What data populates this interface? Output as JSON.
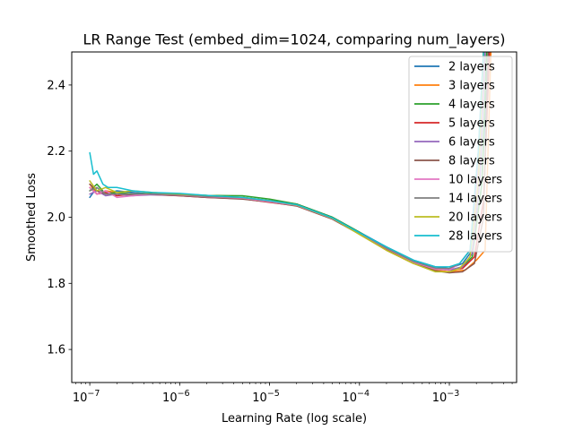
{
  "chart_data": {
    "type": "line",
    "title": "LR Range Test (embed_dim=1024, comparing num_layers)",
    "xlabel": "Learning Rate (log scale)",
    "ylabel": "Smoothed Loss",
    "xscale": "log",
    "xlim": [
      6.3e-08,
      0.0056
    ],
    "ylim": [
      1.5,
      2.5
    ],
    "xticks": [
      1e-07,
      1e-06,
      1e-05,
      0.0001,
      0.001
    ],
    "xtick_labels": [
      {
        "base": "10",
        "exp": "−7"
      },
      {
        "base": "10",
        "exp": "−6"
      },
      {
        "base": "10",
        "exp": "−5"
      },
      {
        "base": "10",
        "exp": "−4"
      },
      {
        "base": "10",
        "exp": "−3"
      }
    ],
    "yticks": [
      1.6,
      1.8,
      2.0,
      2.2,
      2.4
    ],
    "ytick_labels": [
      "1.6",
      "1.8",
      "2.0",
      "2.2",
      "2.4"
    ],
    "grid": false,
    "legend_position": "top-right",
    "series": [
      {
        "name": "2 layers",
        "color": "#1f77b4",
        "x": [
          1e-07,
          1.2e-07,
          1.5e-07,
          2e-07,
          3e-07,
          5e-07,
          1e-06,
          2e-06,
          5e-06,
          1e-05,
          2e-05,
          5e-05,
          0.0001,
          0.0002,
          0.0004,
          0.0007,
          0.001,
          0.0014,
          0.0018,
          0.0023,
          0.0027
        ],
        "y": [
          2.06,
          2.09,
          2.07,
          2.08,
          2.075,
          2.07,
          2.07,
          2.065,
          2.06,
          2.05,
          2.04,
          2.0,
          1.955,
          1.91,
          1.87,
          1.85,
          1.845,
          1.86,
          1.9,
          2.1,
          2.5
        ]
      },
      {
        "name": "3 layers",
        "color": "#ff7f0e",
        "x": [
          1e-07,
          1.2e-07,
          1.5e-07,
          2e-07,
          3e-07,
          5e-07,
          1e-06,
          2e-06,
          5e-06,
          1e-05,
          2e-05,
          5e-05,
          0.0001,
          0.0002,
          0.0004,
          0.0007,
          0.001,
          0.0015,
          0.002,
          0.0025,
          0.0029
        ],
        "y": [
          2.1,
          2.07,
          2.08,
          2.075,
          2.07,
          2.07,
          2.068,
          2.062,
          2.058,
          2.048,
          2.035,
          1.995,
          1.95,
          1.9,
          1.86,
          1.84,
          1.835,
          1.84,
          1.87,
          1.9,
          2.5
        ]
      },
      {
        "name": "4 layers",
        "color": "#2ca02c",
        "x": [
          1e-07,
          1.2e-07,
          1.5e-07,
          2e-07,
          3e-07,
          5e-07,
          1e-06,
          2e-06,
          5e-06,
          1e-05,
          2e-05,
          5e-05,
          0.0001,
          0.0002,
          0.0004,
          0.0007,
          0.001,
          0.0014,
          0.0018,
          0.0023,
          0.0026
        ],
        "y": [
          2.08,
          2.1,
          2.07,
          2.075,
          2.07,
          2.072,
          2.07,
          2.066,
          2.065,
          2.055,
          2.04,
          2.0,
          1.955,
          1.905,
          1.865,
          1.845,
          1.84,
          1.85,
          1.88,
          2.1,
          2.5
        ]
      },
      {
        "name": "5 layers",
        "color": "#d62728",
        "x": [
          1e-07,
          1.2e-07,
          1.5e-07,
          2e-07,
          3e-07,
          5e-07,
          1e-06,
          2e-06,
          5e-06,
          1e-05,
          2e-05,
          5e-05,
          0.0001,
          0.0002,
          0.0004,
          0.0007,
          0.001,
          0.0014,
          0.0019,
          0.0024,
          0.0028
        ],
        "y": [
          2.09,
          2.07,
          2.075,
          2.065,
          2.07,
          2.068,
          2.065,
          2.06,
          2.056,
          2.045,
          2.035,
          1.995,
          1.95,
          1.905,
          1.865,
          1.845,
          1.84,
          1.845,
          1.88,
          2.05,
          2.5
        ]
      },
      {
        "name": "6 layers",
        "color": "#9467bd",
        "x": [
          1e-07,
          1.2e-07,
          1.5e-07,
          2e-07,
          3e-07,
          5e-07,
          1e-06,
          2e-06,
          5e-06,
          1e-05,
          2e-05,
          5e-05,
          0.0001,
          0.0002,
          0.0004,
          0.0007,
          0.001,
          0.0014,
          0.0018,
          0.0022,
          0.0025
        ],
        "y": [
          2.07,
          2.08,
          2.065,
          2.07,
          2.065,
          2.068,
          2.066,
          2.062,
          2.057,
          2.047,
          2.036,
          1.996,
          1.952,
          1.907,
          1.866,
          1.846,
          1.84,
          1.85,
          1.89,
          2.12,
          2.5
        ]
      },
      {
        "name": "8 layers",
        "color": "#8c564b",
        "x": [
          1e-07,
          1.2e-07,
          1.5e-07,
          2e-07,
          3e-07,
          5e-07,
          1e-06,
          2e-06,
          5e-06,
          1e-05,
          2e-05,
          5e-05,
          0.0001,
          0.0002,
          0.0004,
          0.0007,
          0.001,
          0.0014,
          0.0019,
          0.0024,
          0.0027
        ],
        "y": [
          2.1,
          2.08,
          2.07,
          2.07,
          2.068,
          2.07,
          2.065,
          2.06,
          2.055,
          2.046,
          2.034,
          1.994,
          1.949,
          1.904,
          1.862,
          1.838,
          1.832,
          1.835,
          1.86,
          2.0,
          2.5
        ]
      },
      {
        "name": "10 layers",
        "color": "#e377c2",
        "x": [
          1e-07,
          1.2e-07,
          1.5e-07,
          2e-07,
          3e-07,
          5e-07,
          1e-06,
          2e-06,
          5e-06,
          1e-05,
          2e-05,
          5e-05,
          0.0001,
          0.0002,
          0.0004,
          0.0007,
          0.001,
          0.0013,
          0.0017,
          0.0021,
          0.0024
        ],
        "y": [
          2.09,
          2.07,
          2.08,
          2.06,
          2.065,
          2.07,
          2.067,
          2.062,
          2.058,
          2.047,
          2.036,
          1.996,
          1.951,
          1.906,
          1.864,
          1.843,
          1.84,
          1.86,
          1.9,
          2.15,
          2.5
        ]
      },
      {
        "name": "14 layers",
        "color": "#7f7f7f",
        "x": [
          1e-07,
          1.2e-07,
          1.5e-07,
          2e-07,
          3e-07,
          5e-07,
          1e-06,
          2e-06,
          5e-06,
          1e-05,
          2e-05,
          5e-05,
          0.0001,
          0.0002,
          0.0004,
          0.0007,
          0.001,
          0.0013,
          0.0017,
          0.0021,
          0.0024
        ],
        "y": [
          2.08,
          2.09,
          2.07,
          2.07,
          2.07,
          2.07,
          2.068,
          2.063,
          2.06,
          2.05,
          2.038,
          1.998,
          1.953,
          1.907,
          1.866,
          1.846,
          1.845,
          1.86,
          1.9,
          2.2,
          2.5
        ]
      },
      {
        "name": "20 layers",
        "color": "#bcbd22",
        "x": [
          1e-07,
          1.2e-07,
          1.5e-07,
          2e-07,
          3e-07,
          5e-07,
          1e-06,
          2e-06,
          5e-06,
          1e-05,
          2e-05,
          5e-05,
          0.0001,
          0.0002,
          0.0004,
          0.0007,
          0.001,
          0.0013,
          0.0017,
          0.0021,
          0.0024
        ],
        "y": [
          2.11,
          2.08,
          2.09,
          2.075,
          2.08,
          2.075,
          2.07,
          2.066,
          2.06,
          2.05,
          2.037,
          1.997,
          1.948,
          1.9,
          1.86,
          1.835,
          1.835,
          1.845,
          1.88,
          2.1,
          2.5
        ]
      },
      {
        "name": "28 layers",
        "color": "#17becf",
        "x": [
          1e-07,
          1.1e-07,
          1.2e-07,
          1.4e-07,
          1.6e-07,
          2e-07,
          3e-07,
          5e-07,
          1e-06,
          2e-06,
          5e-06,
          1e-05,
          2e-05,
          5e-05,
          0.0001,
          0.0002,
          0.0004,
          0.0007,
          0.001,
          0.0013,
          0.0017,
          0.0021,
          0.0024
        ],
        "y": [
          2.195,
          2.13,
          2.14,
          2.1,
          2.09,
          2.09,
          2.08,
          2.075,
          2.072,
          2.066,
          2.06,
          2.05,
          2.038,
          1.998,
          1.953,
          1.91,
          1.87,
          1.85,
          1.85,
          1.86,
          1.9,
          2.2,
          2.5
        ]
      }
    ]
  }
}
